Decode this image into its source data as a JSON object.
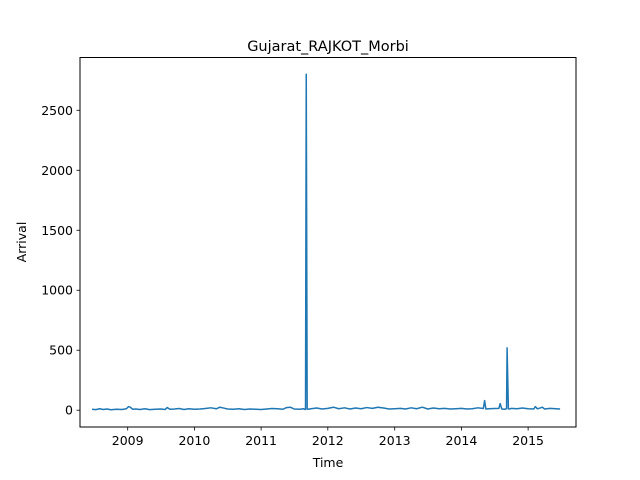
{
  "chart_data": {
    "type": "line",
    "title": "Gujarat_RAJKOT_Morbi",
    "xlabel": "Time",
    "ylabel": "Arrival",
    "xlim": [
      "2008-04-15",
      "2015-09-20"
    ],
    "ylim": [
      -140,
      2940
    ],
    "x_ticks": [
      "2009",
      "2010",
      "2011",
      "2012",
      "2013",
      "2014",
      "2015"
    ],
    "y_ticks": [
      0,
      500,
      1000,
      1500,
      2000,
      2500
    ],
    "grid": false,
    "series": [
      {
        "color": "#1f77b4",
        "x": [
          "2008-06-20",
          "2008-07-10",
          "2008-08-01",
          "2008-08-20",
          "2008-09-10",
          "2008-10-01",
          "2008-11-01",
          "2008-12-01",
          "2008-12-25",
          "2009-01-05",
          "2009-01-15",
          "2009-01-28",
          "2009-02-15",
          "2009-03-10",
          "2009-04-05",
          "2009-05-01",
          "2009-06-01",
          "2009-07-01",
          "2009-07-25",
          "2009-08-05",
          "2009-08-20",
          "2009-09-15",
          "2009-10-10",
          "2009-11-05",
          "2009-12-01",
          "2010-01-01",
          "2010-02-01",
          "2010-03-01",
          "2010-04-01",
          "2010-05-01",
          "2010-05-20",
          "2010-06-10",
          "2010-07-01",
          "2010-08-01",
          "2010-09-01",
          "2010-10-01",
          "2010-11-01",
          "2010-12-01",
          "2011-01-01",
          "2011-02-01",
          "2011-03-01",
          "2011-04-01",
          "2011-05-01",
          "2011-05-20",
          "2011-06-10",
          "2011-07-01",
          "2011-08-01",
          "2011-08-20",
          "2011-09-01",
          "2011-09-05",
          "2011-09-10",
          "2011-09-15",
          "2011-10-01",
          "2011-11-01",
          "2011-12-01",
          "2012-01-01",
          "2012-02-01",
          "2012-03-01",
          "2012-04-01",
          "2012-05-01",
          "2012-06-01",
          "2012-07-01",
          "2012-08-01",
          "2012-09-01",
          "2012-10-01",
          "2012-11-01",
          "2012-12-01",
          "2013-01-01",
          "2013-02-01",
          "2013-03-01",
          "2013-04-01",
          "2013-05-01",
          "2013-06-01",
          "2013-07-01",
          "2013-08-01",
          "2013-09-01",
          "2013-10-01",
          "2013-11-01",
          "2013-12-01",
          "2014-01-01",
          "2014-02-01",
          "2014-03-01",
          "2014-04-01",
          "2014-05-01",
          "2014-05-08",
          "2014-05-15",
          "2014-06-01",
          "2014-07-01",
          "2014-07-25",
          "2014-08-01",
          "2014-08-10",
          "2014-08-25",
          "2014-09-05",
          "2014-09-08",
          "2014-09-15",
          "2014-09-20",
          "2014-10-01",
          "2014-11-01",
          "2014-12-01",
          "2015-01-01",
          "2015-02-01",
          "2015-02-10",
          "2015-02-20",
          "2015-03-01",
          "2015-03-20",
          "2015-04-01",
          "2015-05-01",
          "2015-06-01",
          "2015-06-25"
        ],
        "y": [
          8,
          5,
          12,
          6,
          10,
          4,
          8,
          6,
          12,
          30,
          25,
          8,
          10,
          6,
          12,
          5,
          8,
          10,
          6,
          22,
          8,
          10,
          14,
          6,
          12,
          8,
          10,
          14,
          20,
          12,
          25,
          18,
          10,
          8,
          12,
          6,
          10,
          8,
          6,
          10,
          14,
          12,
          8,
          22,
          25,
          10,
          8,
          12,
          6,
          2800,
          10,
          8,
          12,
          18,
          10,
          15,
          25,
          12,
          20,
          10,
          18,
          12,
          22,
          15,
          25,
          18,
          10,
          12,
          15,
          10,
          20,
          12,
          25,
          10,
          18,
          12,
          15,
          10,
          12,
          15,
          10,
          12,
          20,
          14,
          80,
          10,
          12,
          14,
          15,
          55,
          10,
          8,
          12,
          520,
          12,
          10,
          15,
          12,
          18,
          12,
          10,
          30,
          12,
          15,
          25,
          10,
          15,
          12,
          10
        ]
      }
    ]
  }
}
